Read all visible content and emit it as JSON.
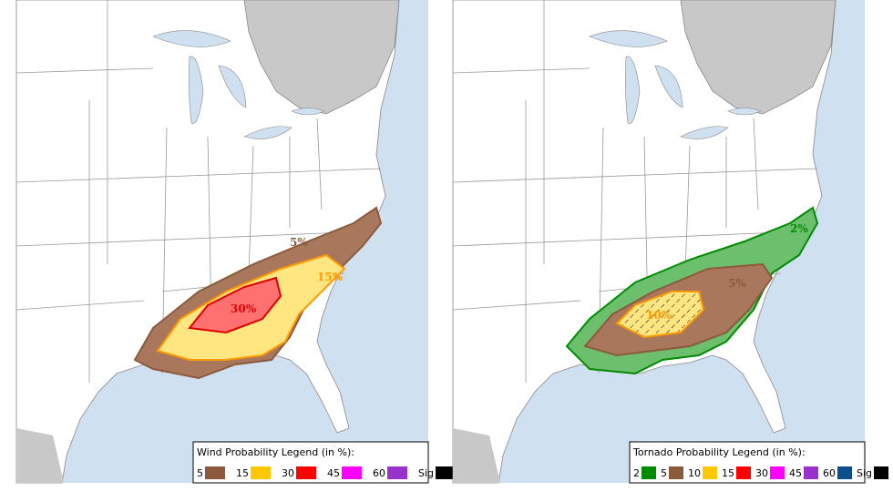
{
  "panels": [
    {
      "legend_title": "Wind Probability Legend (in %):",
      "legend_items": [
        {
          "label": "5",
          "color": "#8b5a3c"
        },
        {
          "label": "15",
          "color": "#ffc800"
        },
        {
          "label": "30",
          "color": "#ff0000"
        },
        {
          "label": "45",
          "color": "#ff00ff"
        },
        {
          "label": "60",
          "color": "#9932cc"
        },
        {
          "label": "Sig",
          "color": "#000000"
        }
      ],
      "contour_labels": [
        {
          "text": "5%",
          "color": "#8b5a3c"
        },
        {
          "text": "15%",
          "color": "#ff9900"
        },
        {
          "text": "30%",
          "color": "#dd0000"
        }
      ]
    },
    {
      "legend_title": "Tornado Probability Legend (in %):",
      "legend_items": [
        {
          "label": "2",
          "color": "#008b00"
        },
        {
          "label": "5",
          "color": "#8b5a3c"
        },
        {
          "label": "10",
          "color": "#ffc800"
        },
        {
          "label": "15",
          "color": "#ff0000"
        },
        {
          "label": "30",
          "color": "#ff00ff"
        },
        {
          "label": "45",
          "color": "#9932cc"
        },
        {
          "label": "60",
          "color": "#104e8b"
        },
        {
          "label": "Sig",
          "color": "#000000"
        }
      ],
      "contour_labels": [
        {
          "text": "2%",
          "color": "#008b00"
        },
        {
          "text": "5%",
          "color": "#8b5a3c"
        },
        {
          "text": "10%",
          "color": "#ff9900"
        }
      ]
    }
  ]
}
